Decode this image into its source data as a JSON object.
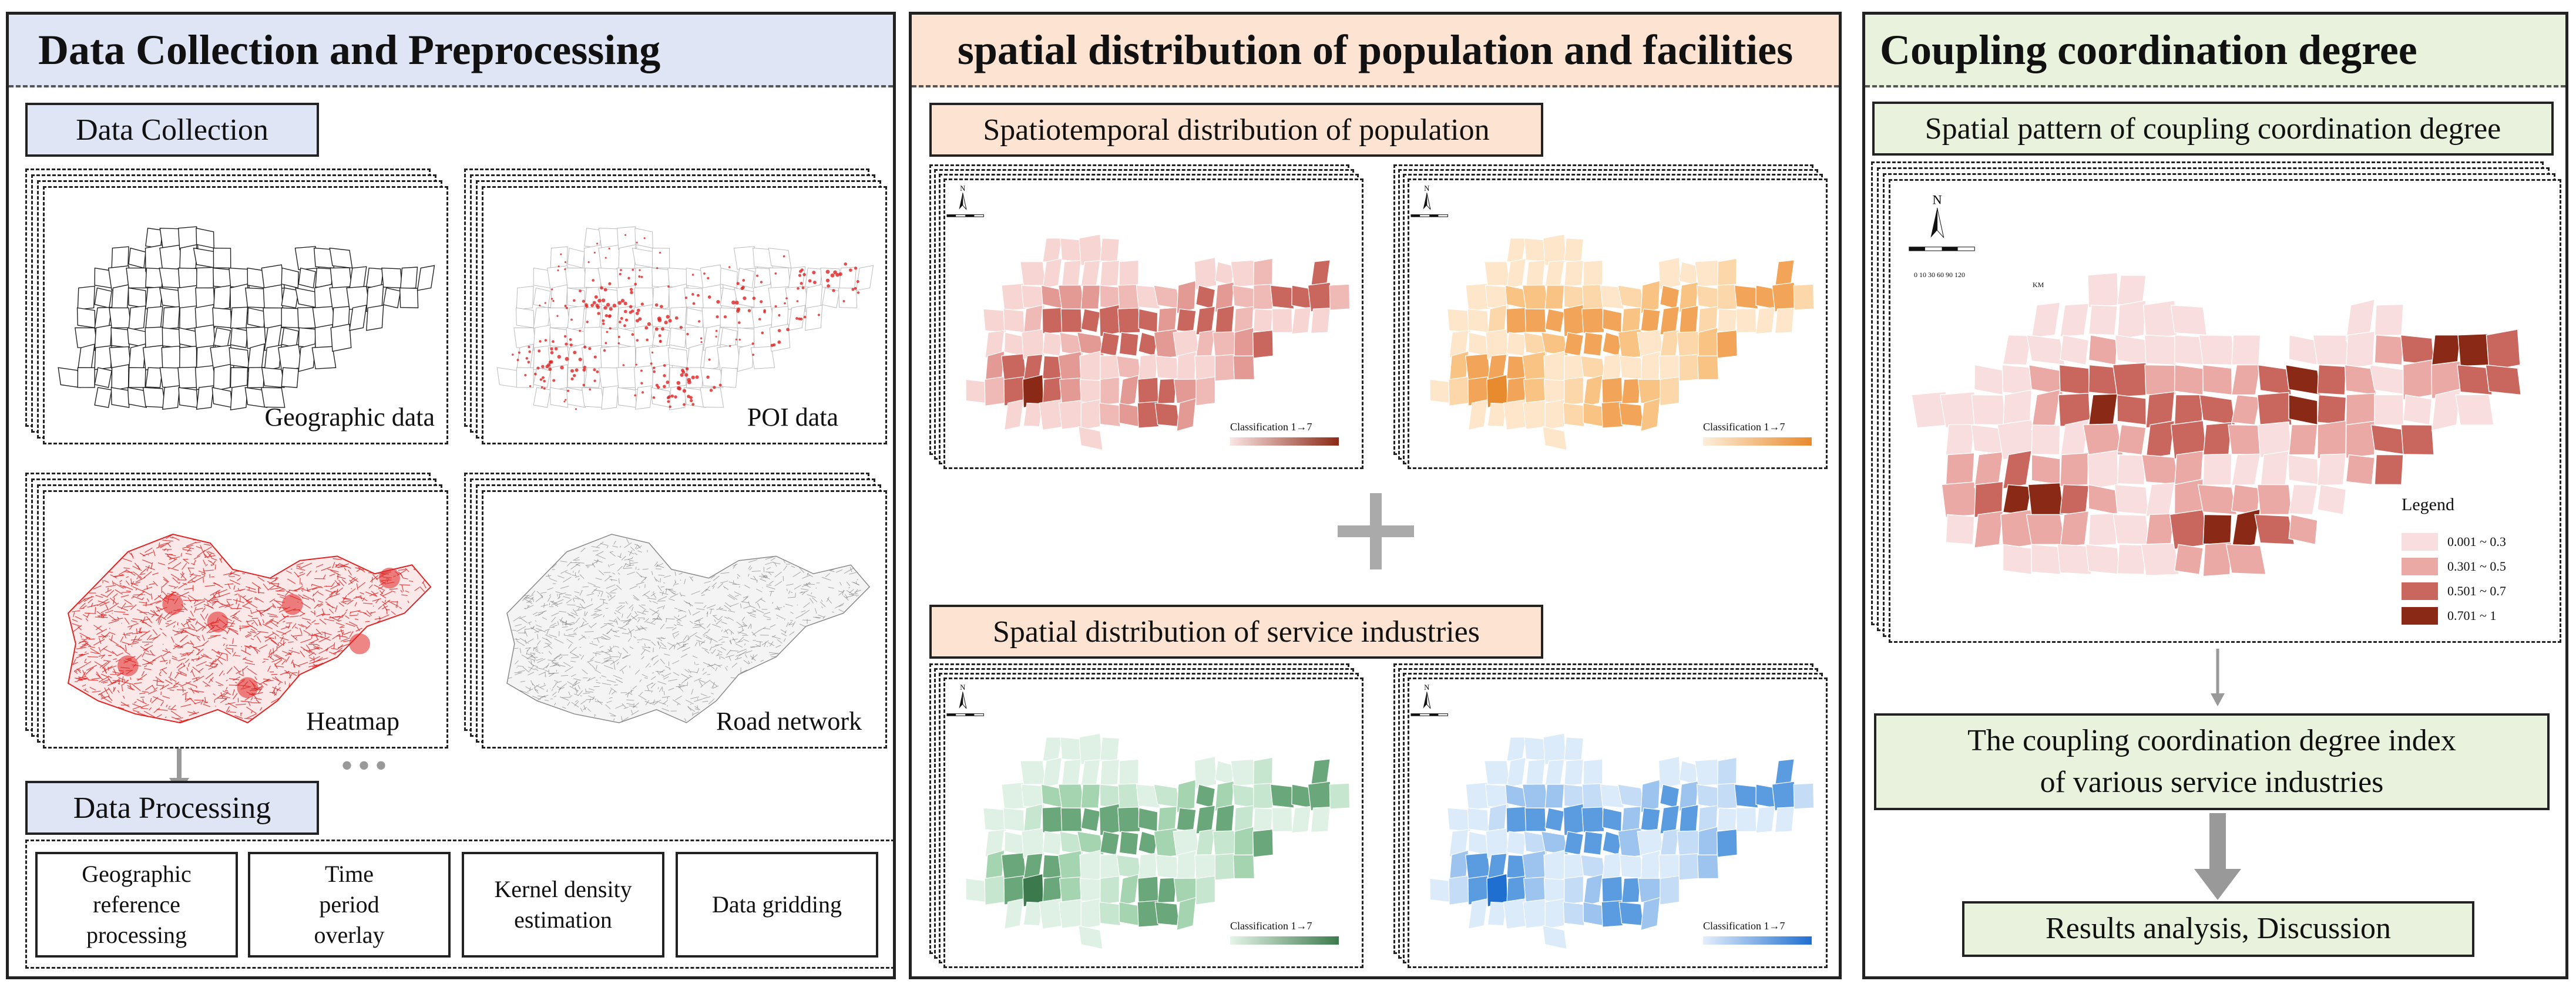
{
  "panels": {
    "left": {
      "title": "Data Collection and Preprocessing",
      "head_color": "#dfe5f4",
      "collection_label": "Data Collection",
      "processing_label": "Data Processing",
      "maps": [
        {
          "label": "Geographic data"
        },
        {
          "label": "POI data"
        },
        {
          "label": "Heatmap"
        },
        {
          "label": "Road network"
        }
      ],
      "ellipsis": "•••",
      "processing_steps": [
        "Geographic reference processing",
        "Time period overlay",
        "Kernel density estimation",
        "Data gridding"
      ]
    },
    "middle": {
      "title": "spatial distribution of population and facilities",
      "head_color": "#fde3d2",
      "population_label": "Spatiotemporal distribution of population",
      "service_label": "Spatial distribution of service industries",
      "plus": "+",
      "classification": "Classification 1→7"
    },
    "right": {
      "title": "Coupling coordination degree",
      "head_color": "#e8f2dc",
      "pattern_label": "Spatial pattern of coupling coordination degree",
      "index_text_1": "The coupling coordination degree index",
      "index_text_2": "of various service industries",
      "results_text": "Results analysis, Discussion",
      "legend": {
        "title": "Legend",
        "items": [
          {
            "label": "0.001 ~ 0.3",
            "color": "#f8dede"
          },
          {
            "label": "0.301 ~ 0.5",
            "color": "#eaa9a4"
          },
          {
            "label": "0.501 ~ 0.7",
            "color": "#c9665e"
          },
          {
            "label": "0.701 ~ 1",
            "color": "#8a2a16"
          }
        ]
      },
      "scale_ticks": "0  10 30    60   90   120",
      "scale_unit": "KM"
    }
  },
  "north_arrow": "N",
  "colors": {
    "pop_red": [
      "#f6d5d3",
      "#efb9b5",
      "#e39a94",
      "#c9665e",
      "#8a2a16"
    ],
    "pop_orange": [
      "#fde6c9",
      "#fbd7a9",
      "#f8c383",
      "#f2a458",
      "#e88a2e"
    ],
    "svc_green": [
      "#dff1e4",
      "#c6e6cf",
      "#a4d4b0",
      "#6aa77a",
      "#3c7a4d"
    ],
    "svc_blue": [
      "#dcebfa",
      "#c4dcf5",
      "#9cc4ee",
      "#5b9be0",
      "#1f6fd0"
    ],
    "poi_red": "#e02020",
    "heat_red": "#e02222",
    "road_gray": "#777777"
  }
}
